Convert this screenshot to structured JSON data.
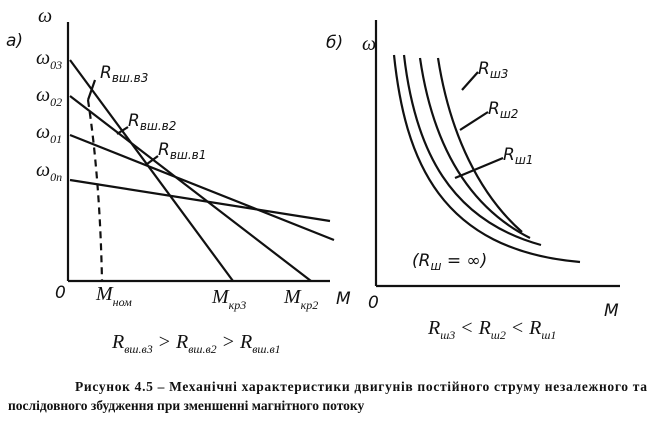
{
  "panel_a": {
    "tag": "а)",
    "axis_y": "ω",
    "axis_x": "M",
    "origin": "0",
    "speed_labels": [
      {
        "main": "ω",
        "sub": "03"
      },
      {
        "main": "ω",
        "sub": "02"
      },
      {
        "main": "ω",
        "sub": "01"
      },
      {
        "main": "ω",
        "sub": "0n"
      }
    ],
    "curve_labels": [
      {
        "main": "R",
        "sub": "вш.в3"
      },
      {
        "main": "R",
        "sub": "вш.в2"
      },
      {
        "main": "R",
        "sub": "вш.в1"
      }
    ],
    "torque_labels": [
      {
        "main": "M",
        "sub": "ном"
      },
      {
        "main": "M",
        "sub": "кр3"
      },
      {
        "main": "M",
        "sub": "кр2"
      }
    ],
    "formula": {
      "terms": [
        {
          "main": "R",
          "sub": "вш.в3"
        },
        {
          "main": "R",
          "sub": "вш.в2"
        },
        {
          "main": "R",
          "sub": "вш.в1"
        }
      ],
      "operators": [
        ">",
        ">"
      ]
    }
  },
  "panel_b": {
    "tag": "б)",
    "axis_y": "ω",
    "axis_x": "M",
    "origin": "0",
    "curve_labels": [
      {
        "main": "R",
        "sub": "ш3"
      },
      {
        "main": "R",
        "sub": "ш2"
      },
      {
        "main": "R",
        "sub": "ш1"
      }
    ],
    "limit_label": {
      "open": "(R",
      "sub": "ш",
      "rest": " = ∞)"
    },
    "formula": {
      "terms": [
        {
          "main": "R",
          "sub": "ш3"
        },
        {
          "main": "R",
          "sub": "ш2"
        },
        {
          "main": "R",
          "sub": "ш1"
        }
      ],
      "operators": [
        "<",
        "<"
      ]
    }
  },
  "caption": {
    "lines": [
      "Рисунок 4.5 – Механічні характеристики двигунів постійного струму незалежного та",
      "послідовного збудження при зменшенні магнітного потоку"
    ]
  }
}
